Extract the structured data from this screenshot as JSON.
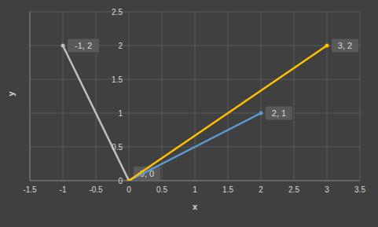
{
  "chart_data": {
    "type": "scatter",
    "x_label": "x",
    "y_label": "y",
    "xlim": [
      -1.5,
      3.5
    ],
    "xticks": [
      -1.5,
      -1,
      -0.5,
      0,
      0.5,
      1,
      1.5,
      2,
      2.5,
      3,
      3.5
    ],
    "ylim": [
      0,
      2.5
    ],
    "yticks": [
      0,
      0.5,
      1,
      1.5,
      2,
      2.5
    ],
    "grid": true,
    "line_style": "solid",
    "marker": "circle",
    "data_labels": true,
    "series": [
      {
        "color": "#bfbfbf",
        "x": [
          0,
          -1
        ],
        "values": [
          0,
          2
        ],
        "value_labels": [
          "0, 0",
          "-1, 2"
        ]
      },
      {
        "color": "#5b9bd5",
        "x": [
          0,
          2
        ],
        "values": [
          0,
          1
        ],
        "value_labels": [
          null,
          "2, 1"
        ]
      },
      {
        "color": "#ffc000",
        "x": [
          0,
          3
        ],
        "values": [
          0,
          2
        ],
        "value_labels": [
          null,
          "3, 2"
        ]
      }
    ]
  }
}
